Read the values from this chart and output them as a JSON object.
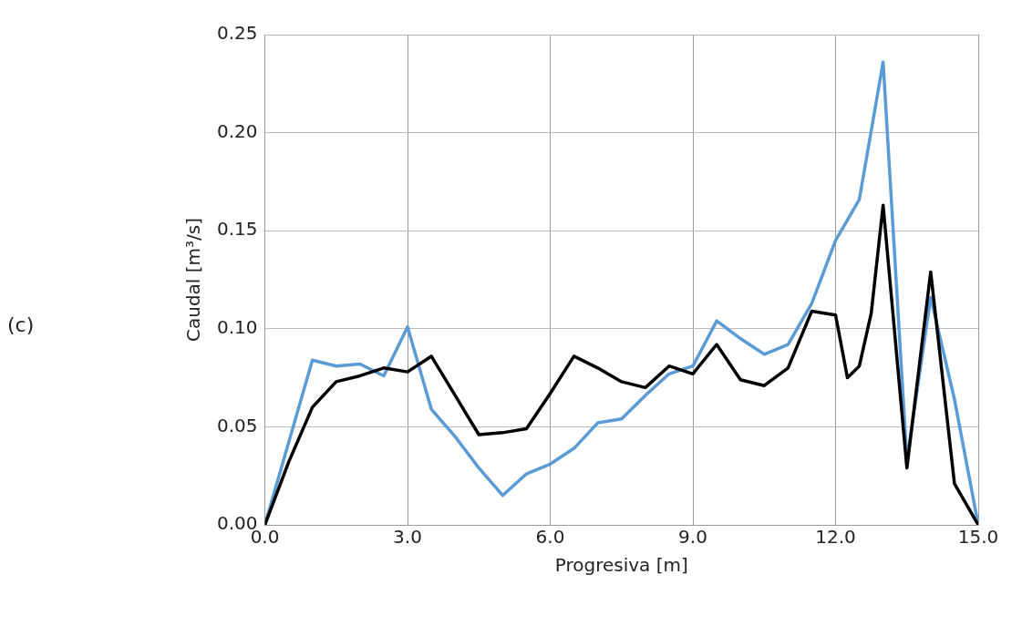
{
  "chart_data": {
    "type": "line",
    "xlabel": "Progresiva [m]",
    "ylabel": "Caudal [m³/s]",
    "annotations": [
      "(c)"
    ],
    "xlim": [
      0,
      15
    ],
    "xticks": [
      {
        "value": 0,
        "label": "0.0"
      },
      {
        "value": 3,
        "label": "3.0"
      },
      {
        "value": 6,
        "label": "6.0"
      },
      {
        "value": 9,
        "label": "9.0"
      },
      {
        "value": 12,
        "label": "12.0"
      },
      {
        "value": 15,
        "label": "15.0"
      }
    ],
    "ylim": [
      0,
      0.25
    ],
    "yticks": [
      {
        "value": 0,
        "label": "0.00"
      },
      {
        "value": 0.05,
        "label": "0.05"
      },
      {
        "value": 0.1,
        "label": "0.10"
      },
      {
        "value": 0.15,
        "label": "0.15"
      },
      {
        "value": 0.2,
        "label": "0.20"
      },
      {
        "value": 0.25,
        "label": "0.25"
      }
    ],
    "grid": true,
    "legend": false,
    "marker": "none",
    "line_style": "solid",
    "series": [
      {
        "color": "#000000",
        "x": [
          0,
          0.5,
          1,
          1.5,
          2,
          2.5,
          3,
          3.5,
          4,
          4.5,
          5,
          5.5,
          6,
          6.5,
          7,
          7.5,
          8,
          8.5,
          9,
          9.5,
          10,
          10.5,
          11,
          11.5,
          12,
          12.25,
          12.5,
          12.75,
          13,
          13.5,
          14,
          14.5,
          15
        ],
        "values": [
          0,
          0.032,
          0.06,
          0.073,
          0.076,
          0.08,
          0.078,
          0.086,
          0.066,
          0.046,
          0.047,
          0.049,
          0.067,
          0.086,
          0.08,
          0.073,
          0.07,
          0.081,
          0.077,
          0.092,
          0.074,
          0.071,
          0.08,
          0.109,
          0.107,
          0.075,
          0.081,
          0.108,
          0.163,
          0.029,
          0.129,
          0.021,
          0
        ]
      },
      {
        "color": "#5b9bd5",
        "x": [
          0,
          0.5,
          1,
          1.5,
          2,
          2.5,
          3,
          3.5,
          4,
          4.5,
          5,
          5.5,
          6,
          6.5,
          7,
          7.5,
          8,
          8.5,
          9,
          9.5,
          10,
          10.5,
          11,
          11.5,
          12,
          12.5,
          13,
          13.5,
          14,
          14.5,
          15
        ],
        "values": [
          0,
          0.042,
          0.084,
          0.081,
          0.082,
          0.076,
          0.101,
          0.059,
          0.045,
          0.029,
          0.015,
          0.026,
          0.031,
          0.039,
          0.052,
          0.054,
          0.066,
          0.077,
          0.081,
          0.104,
          0.095,
          0.087,
          0.092,
          0.113,
          0.145,
          0.166,
          0.236,
          0.033,
          0.116,
          0.064,
          0
        ]
      }
    ]
  }
}
